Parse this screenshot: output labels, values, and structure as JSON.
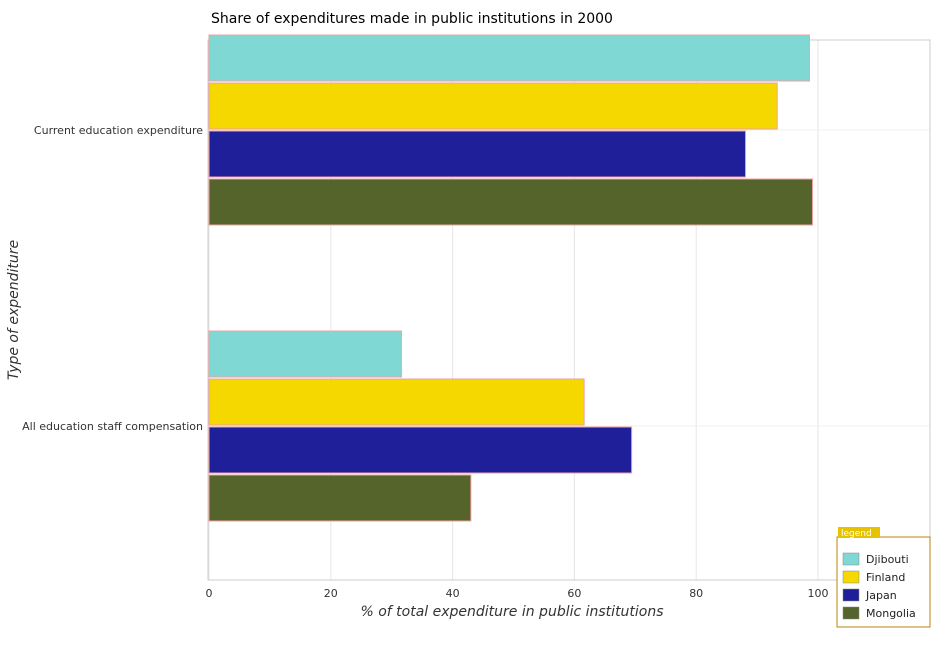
{
  "chart_data": {
    "type": "bar",
    "orientation": "horizontal",
    "title": "Share of expenditures made in public institutions in 2000",
    "xlabel": "% of total expenditure in public institutions",
    "ylabel": "Type of expenditure",
    "categories": [
      "All education staff compensation",
      "Current education expenditure"
    ],
    "series": [
      {
        "name": "Djibouti",
        "color": "#7fd8d4",
        "values": [
          31.6,
          98.6
        ]
      },
      {
        "name": "Finland",
        "color": "#f5d800",
        "values": [
          61.6,
          93.3
        ]
      },
      {
        "name": "Japan",
        "color": "#1f1f99",
        "values": [
          69.4,
          88.1
        ]
      },
      {
        "name": "Mongolia",
        "color": "#55642b",
        "values": [
          43.0,
          99.1
        ]
      }
    ],
    "xlim": [
      0,
      105
    ],
    "xticks": [
      0,
      20,
      40,
      60,
      80,
      100
    ],
    "grid": true,
    "legend": {
      "title": "legend",
      "position": "bottom-right"
    }
  }
}
